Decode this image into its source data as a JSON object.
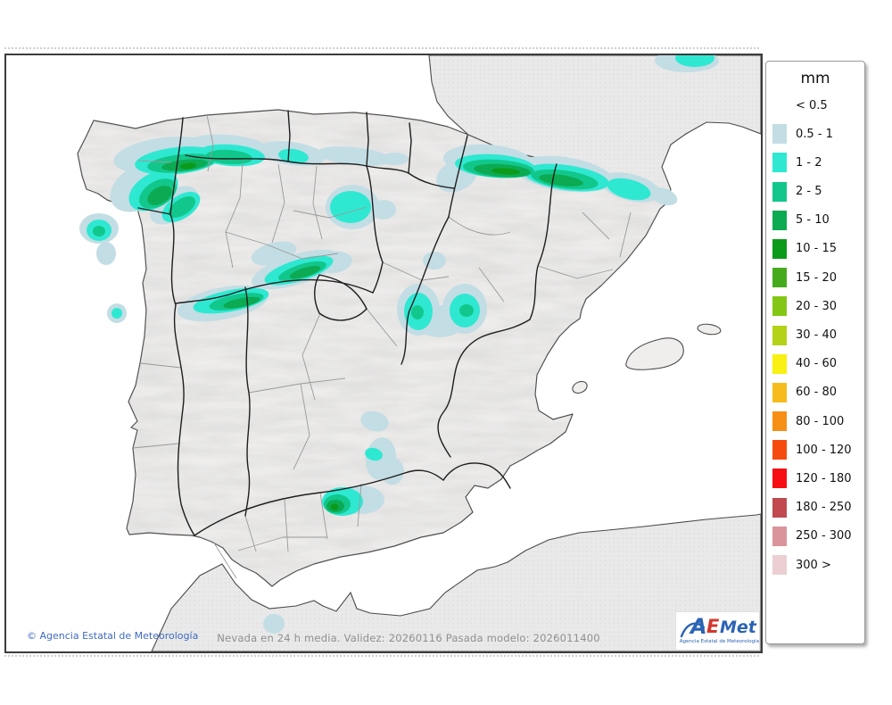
{
  "legend": {
    "title": "mm",
    "entries": [
      {
        "label": "< 0.5",
        "color": null
      },
      {
        "label": "0.5 - 1",
        "color": "#c3dde4"
      },
      {
        "label": "1 - 2",
        "color": "#2fe8d2"
      },
      {
        "label": "2 - 5",
        "color": "#12c78b"
      },
      {
        "label": "5 - 10",
        "color": "#0caa52"
      },
      {
        "label": "10 - 15",
        "color": "#0b9a1a"
      },
      {
        "label": "15 - 20",
        "color": "#46ab1c"
      },
      {
        "label": "20 - 30",
        "color": "#83c714"
      },
      {
        "label": "30 - 40",
        "color": "#b4d218"
      },
      {
        "label": "40 - 60",
        "color": "#f8f112"
      },
      {
        "label": "60 - 80",
        "color": "#f6bc1d"
      },
      {
        "label": "80 - 100",
        "color": "#f68f15"
      },
      {
        "label": "100 - 120",
        "color": "#f54b0e"
      },
      {
        "label": "120 - 180",
        "color": "#f70d14"
      },
      {
        "label": "180 - 250",
        "color": "#c04a50"
      },
      {
        "label": "250 - 300",
        "color": "#d9959b"
      },
      {
        "label": "300 >",
        "color": "#eccfd3"
      }
    ]
  },
  "map": {
    "attribution": "© Agencia Estatal de Meteorología",
    "caption": "Nevada en 24 h media. Validez: 20260116 Pasada modelo: 2026011400",
    "snow_colors": {
      "lightblue": "#c3dde4",
      "cyan": "#2fe8d2",
      "teal": "#12c78b",
      "green": "#0caa52",
      "darkgreen": "#0b9a1a"
    },
    "land_colors": {
      "iberia": "#f2f1f0",
      "neighbor": "#e9e9e9",
      "sea": "#ffffff"
    }
  },
  "logo": {
    "part_a": "A",
    "part_e": "E",
    "part_met": "Met",
    "subtitle": "Agencia Estatal de Meteorología"
  }
}
